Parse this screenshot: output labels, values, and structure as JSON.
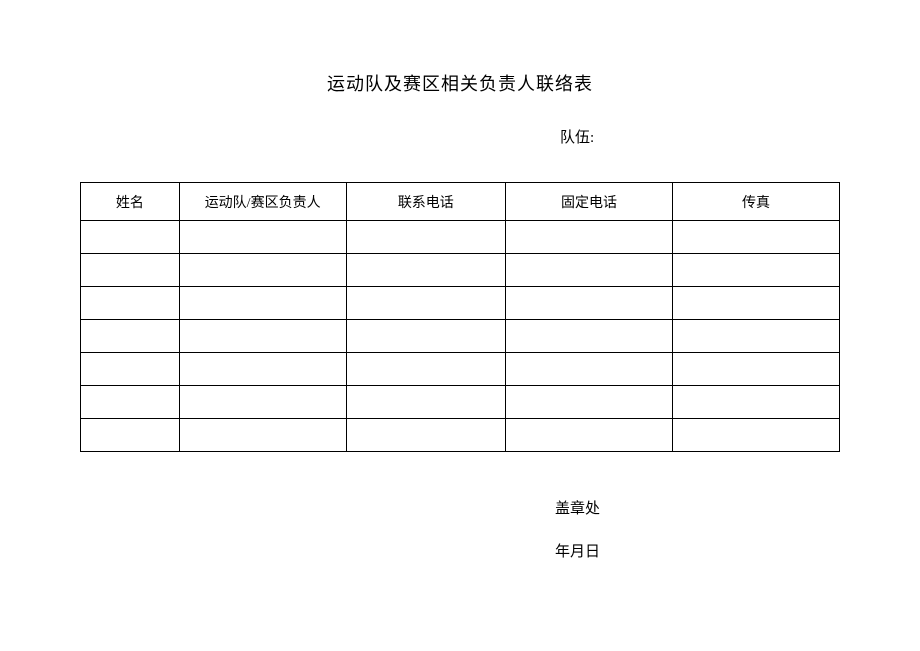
{
  "title": "运动队及赛区相关负责人联络表",
  "team_label": "队伍:",
  "table": {
    "columns": [
      "姓名",
      "运动队/赛区负责人",
      "联系电话",
      "固定电话",
      "传真"
    ],
    "rows": [
      [
        "",
        "",
        "",
        "",
        ""
      ],
      [
        "",
        "",
        "",
        "",
        ""
      ],
      [
        "",
        "",
        "",
        "",
        ""
      ],
      [
        "",
        "",
        "",
        "",
        ""
      ],
      [
        "",
        "",
        "",
        "",
        ""
      ],
      [
        "",
        "",
        "",
        "",
        ""
      ],
      [
        "",
        "",
        "",
        "",
        ""
      ]
    ]
  },
  "footer": {
    "stamp": "盖章处",
    "date": "年月日"
  }
}
